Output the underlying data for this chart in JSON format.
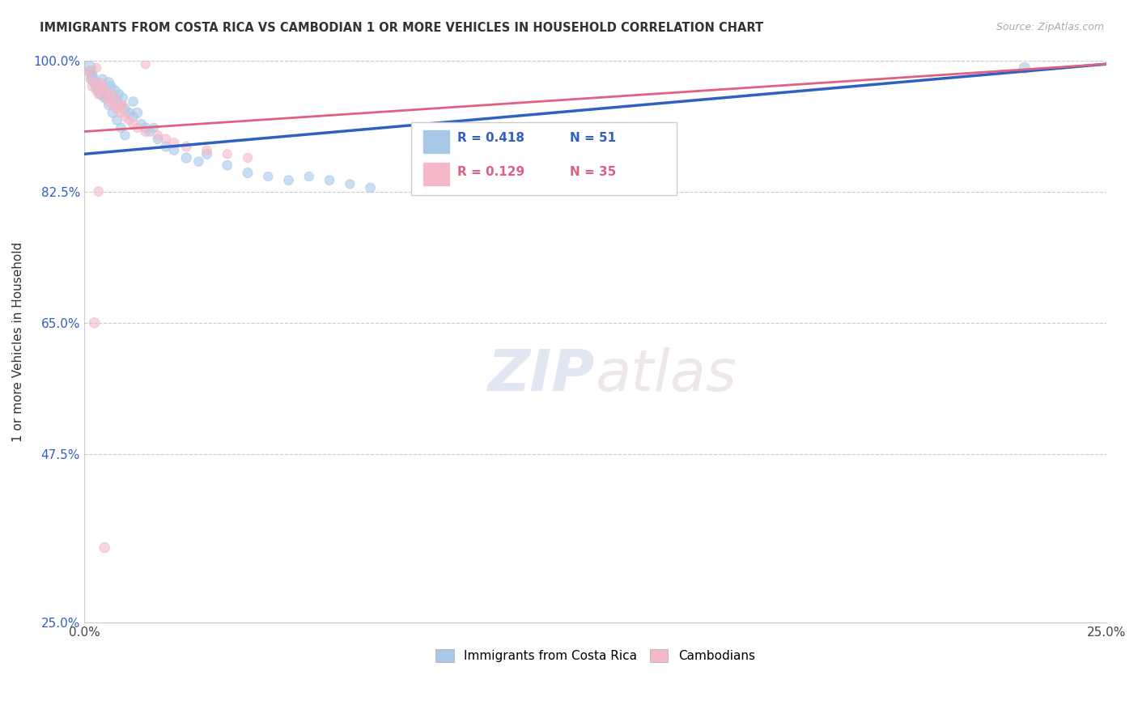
{
  "title": "IMMIGRANTS FROM COSTA RICA VS CAMBODIAN 1 OR MORE VEHICLES IN HOUSEHOLD CORRELATION CHART",
  "source": "Source: ZipAtlas.com",
  "ylabel": "1 or more Vehicles in Household",
  "xlim": [
    0.0,
    25.0
  ],
  "ylim": [
    25.0,
    100.0
  ],
  "xticks": [
    0.0,
    5.0,
    10.0,
    15.0,
    20.0,
    25.0
  ],
  "yticks": [
    25.0,
    47.5,
    65.0,
    82.5,
    100.0
  ],
  "xticklabels": [
    "0.0%",
    "",
    "",
    "",
    "",
    "25.0%"
  ],
  "yticklabels": [
    "25.0%",
    "47.5%",
    "65.0%",
    "82.5%",
    "100.0%"
  ],
  "blue_R": 0.418,
  "blue_N": 51,
  "pink_R": 0.129,
  "pink_N": 35,
  "blue_color": "#a8c8e8",
  "pink_color": "#f4b8c8",
  "blue_line_color": "#3060c0",
  "pink_line_color": "#e06080",
  "legend_label_blue": "Immigrants from Costa Rica",
  "legend_label_pink": "Cambodians",
  "blue_line_x0": 0.0,
  "blue_line_y0": 87.5,
  "blue_line_x1": 25.0,
  "blue_line_y1": 99.5,
  "pink_line_x0": 0.0,
  "pink_line_y0": 90.5,
  "pink_line_x1": 25.0,
  "pink_line_y1": 99.5,
  "blue_scatter_x": [
    0.1,
    0.15,
    0.2,
    0.25,
    0.3,
    0.35,
    0.4,
    0.45,
    0.5,
    0.55,
    0.6,
    0.65,
    0.7,
    0.75,
    0.8,
    0.85,
    0.9,
    0.95,
    1.0,
    1.1,
    1.2,
    1.3,
    1.4,
    1.5,
    1.6,
    1.7,
    1.8,
    2.0,
    2.2,
    2.5,
    2.8,
    3.0,
    3.5,
    4.0,
    4.5,
    5.0,
    5.5,
    6.0,
    6.5,
    7.0,
    0.2,
    0.3,
    0.4,
    0.5,
    0.6,
    0.7,
    0.8,
    0.9,
    1.0,
    23.0,
    1.2
  ],
  "blue_scatter_y": [
    99.0,
    98.5,
    97.5,
    97.0,
    96.5,
    96.0,
    95.5,
    97.5,
    96.0,
    95.0,
    97.0,
    96.5,
    95.0,
    96.0,
    94.5,
    95.5,
    94.0,
    95.0,
    93.5,
    93.0,
    92.5,
    93.0,
    91.5,
    91.0,
    90.5,
    91.0,
    89.5,
    88.5,
    88.0,
    87.0,
    86.5,
    87.5,
    86.0,
    85.0,
    84.5,
    84.0,
    84.5,
    84.0,
    83.5,
    83.0,
    98.0,
    97.0,
    96.0,
    95.0,
    94.0,
    93.0,
    92.0,
    91.0,
    90.0,
    99.0,
    94.5
  ],
  "blue_scatter_size": [
    180,
    90,
    100,
    80,
    90,
    75,
    85,
    70,
    80,
    75,
    90,
    80,
    85,
    75,
    80,
    70,
    75,
    65,
    80,
    75,
    70,
    80,
    70,
    75,
    70,
    65,
    70,
    75,
    70,
    80,
    70,
    75,
    70,
    75,
    65,
    70,
    65,
    70,
    65,
    70,
    80,
    75,
    70,
    75,
    70,
    75,
    70,
    70,
    70,
    90,
    70
  ],
  "pink_scatter_x": [
    0.1,
    0.15,
    0.2,
    0.25,
    0.3,
    0.35,
    0.4,
    0.45,
    0.5,
    0.55,
    0.6,
    0.65,
    0.7,
    0.75,
    0.8,
    0.85,
    0.9,
    0.95,
    1.0,
    1.1,
    1.2,
    1.3,
    1.5,
    1.8,
    2.0,
    2.2,
    2.5,
    3.0,
    3.5,
    4.0,
    0.25,
    0.35,
    0.3,
    1.5,
    0.5
  ],
  "pink_scatter_y": [
    98.5,
    97.5,
    96.5,
    97.0,
    96.0,
    95.5,
    97.0,
    96.5,
    96.0,
    95.0,
    94.5,
    95.5,
    94.0,
    95.0,
    93.5,
    94.0,
    93.0,
    94.0,
    92.5,
    92.0,
    91.5,
    91.0,
    90.5,
    90.0,
    89.5,
    89.0,
    88.5,
    88.0,
    87.5,
    87.0,
    65.0,
    82.5,
    99.0,
    99.5,
    35.0
  ],
  "pink_scatter_size": [
    65,
    65,
    70,
    65,
    70,
    65,
    70,
    65,
    70,
    65,
    70,
    65,
    70,
    65,
    70,
    65,
    70,
    65,
    70,
    65,
    70,
    65,
    70,
    70,
    70,
    70,
    70,
    70,
    65,
    65,
    80,
    70,
    65,
    65,
    80
  ]
}
